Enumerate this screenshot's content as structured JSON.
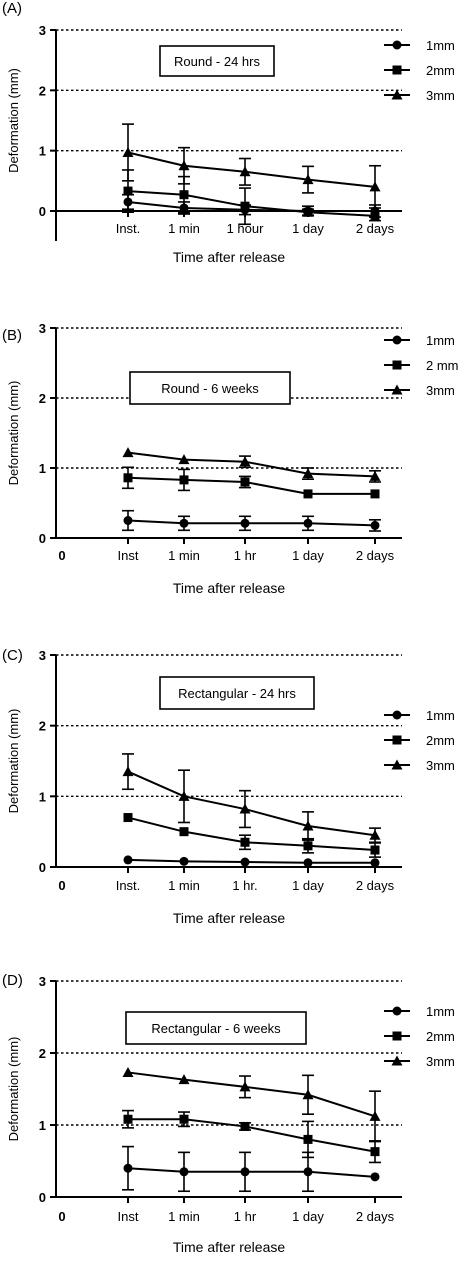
{
  "chart_data": [
    {
      "panel_label": "(A)",
      "type": "line",
      "title": "Round - 24 hrs",
      "xlabel": "Time after release",
      "ylabel": "Deformation (mm)",
      "ylim": [
        0,
        3
      ],
      "yticks": [
        "0",
        "1",
        "2",
        "3"
      ],
      "x_zero_label": "",
      "categories": [
        "Inst.",
        "1 min",
        "1 hour",
        "1 day",
        "2 days"
      ],
      "grid": "dotted horizontal at 1, 2, 3",
      "legend_position": "top-right",
      "series": [
        {
          "name": "1mm",
          "marker": "circle",
          "values": [
            0.15,
            0.05,
            0.02,
            0.0,
            0.0
          ],
          "error": [
            0.12,
            0.1,
            0.08,
            0.08,
            0.1
          ]
        },
        {
          "name": "2mm",
          "marker": "square",
          "values": [
            0.33,
            0.27,
            0.08,
            -0.02,
            -0.08
          ],
          "error": [
            0.35,
            0.3,
            0.3,
            0.05,
            0.08
          ]
        },
        {
          "name": "3mm",
          "marker": "triangle",
          "values": [
            0.97,
            0.75,
            0.65,
            0.52,
            0.4
          ],
          "error": [
            0.47,
            0.3,
            0.22,
            0.22,
            0.35
          ]
        }
      ]
    },
    {
      "panel_label": "(B)",
      "type": "line",
      "title": "Round - 6 weeks",
      "xlabel": "Time after release",
      "ylabel": "Deformation (mm)",
      "ylim": [
        0,
        3
      ],
      "yticks": [
        "0",
        "1",
        "2",
        "3"
      ],
      "x_zero_label": "0",
      "categories": [
        "Inst",
        "1 min",
        "1 hr",
        "1 day",
        "2 days"
      ],
      "grid": "dotted horizontal at 1, 2, 3",
      "legend_position": "top-right",
      "series": [
        {
          "name": "1mm",
          "marker": "circle",
          "values": [
            0.25,
            0.21,
            0.21,
            0.21,
            0.18
          ],
          "error": [
            0.14,
            0.1,
            0.1,
            0.1,
            0.08
          ]
        },
        {
          "name": "2 mm",
          "marker": "square",
          "values": [
            0.86,
            0.83,
            0.8,
            0.63,
            0.63
          ],
          "error": [
            0.15,
            0.15,
            0.08,
            0.0,
            0.0
          ]
        },
        {
          "name": "3mm",
          "marker": "triangle",
          "values": [
            1.22,
            1.12,
            1.09,
            0.92,
            0.88
          ],
          "error": [
            0.0,
            0.0,
            0.08,
            0.08,
            0.08
          ]
        }
      ]
    },
    {
      "panel_label": "(C)",
      "type": "line",
      "title": "Rectangular - 24 hrs",
      "xlabel": "Time after release",
      "ylabel": "Deformation (mm)",
      "ylim": [
        0,
        3
      ],
      "yticks": [
        "0",
        "1",
        "2",
        "3"
      ],
      "x_zero_label": "0",
      "categories": [
        "Inst.",
        "1 min",
        "1 hr.",
        "1 day",
        "2 days"
      ],
      "grid": "dotted horizontal at 1, 2, 3",
      "legend_position": "right",
      "series": [
        {
          "name": "1mm",
          "marker": "circle",
          "values": [
            0.1,
            0.08,
            0.07,
            0.06,
            0.06
          ],
          "error": [
            0.0,
            0.0,
            0.0,
            0.0,
            0.0
          ]
        },
        {
          "name": "2mm",
          "marker": "square",
          "values": [
            0.7,
            0.5,
            0.35,
            0.3,
            0.24
          ],
          "error": [
            0.0,
            0.0,
            0.1,
            0.1,
            0.1
          ]
        },
        {
          "name": "3mm",
          "marker": "triangle",
          "values": [
            1.35,
            1.0,
            0.82,
            0.58,
            0.45
          ],
          "error": [
            0.25,
            0.37,
            0.26,
            0.2,
            0.1
          ]
        }
      ]
    },
    {
      "panel_label": "(D)",
      "type": "line",
      "title": "Rectangular - 6 weeks",
      "xlabel": "Time after release",
      "ylabel": "Deformation (mm)",
      "ylim": [
        0,
        3
      ],
      "yticks": [
        "0",
        "1",
        "2",
        "3"
      ],
      "x_zero_label": "0",
      "categories": [
        "Inst",
        "1 min",
        "1 hr",
        "1 day",
        "2 days"
      ],
      "grid": "dotted horizontal at 1, 2, 3",
      "legend_position": "top-right",
      "series": [
        {
          "name": "1mm",
          "marker": "circle",
          "values": [
            0.4,
            0.35,
            0.35,
            0.35,
            0.28
          ],
          "error": [
            0.3,
            0.27,
            0.27,
            0.27,
            0.0
          ]
        },
        {
          "name": "2mm",
          "marker": "square",
          "values": [
            1.08,
            1.08,
            0.98,
            0.8,
            0.63
          ],
          "error": [
            0.12,
            0.1,
            0.05,
            0.25,
            0.15
          ]
        },
        {
          "name": "3mm",
          "marker": "triangle",
          "values": [
            1.73,
            1.63,
            1.53,
            1.42,
            1.12
          ],
          "error": [
            0.0,
            0.0,
            0.15,
            0.27,
            0.35
          ]
        }
      ]
    }
  ]
}
